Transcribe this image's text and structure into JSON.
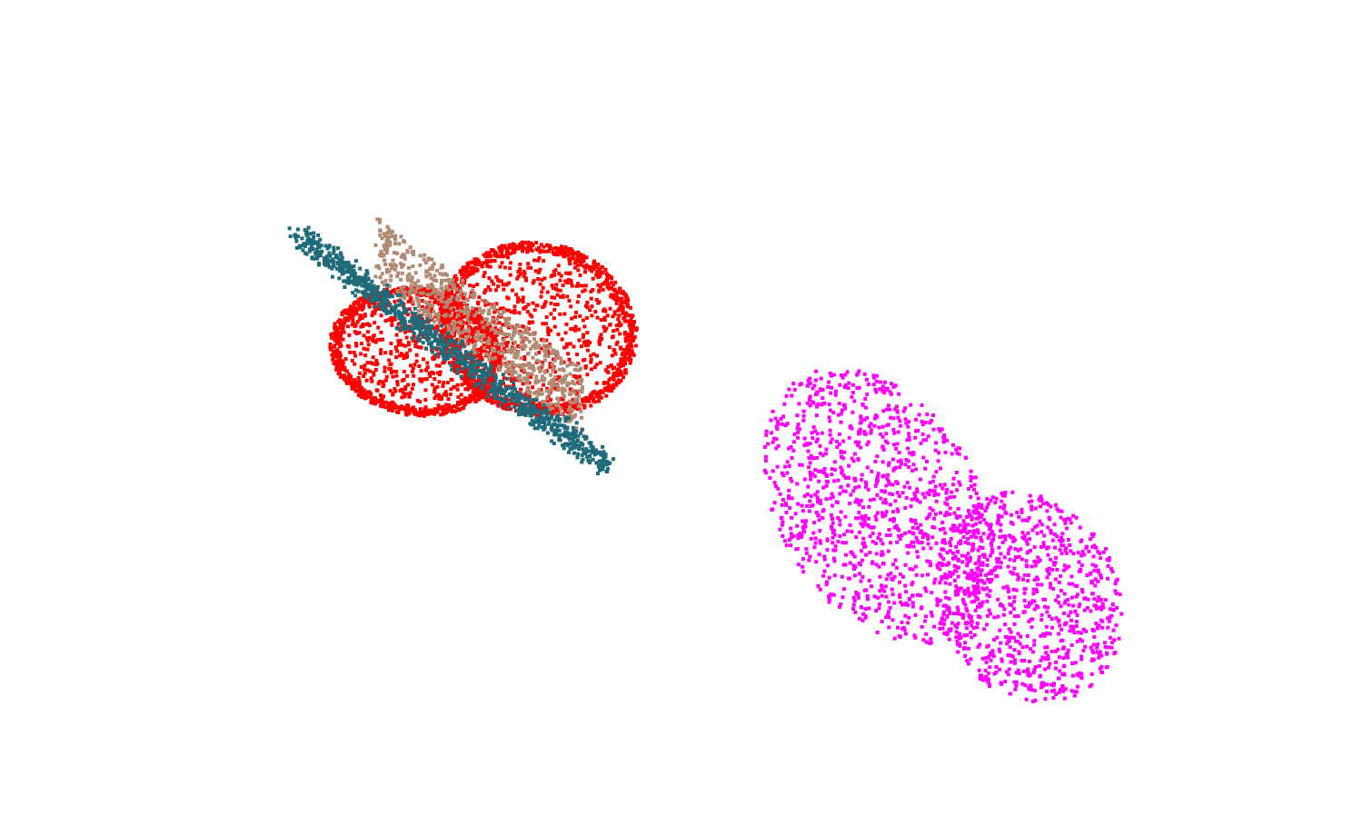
{
  "viewer": {
    "background_color": "#ffffff"
  },
  "clouds": [
    {
      "name": "red-point-cloud",
      "color": "#ff0000"
    },
    {
      "name": "teal-point-cloud",
      "color": "#1f6b7a"
    },
    {
      "name": "tan-point-cloud",
      "color": "#b08a72"
    },
    {
      "name": "magenta-point-cloud",
      "color": "#ff00ff"
    }
  ]
}
